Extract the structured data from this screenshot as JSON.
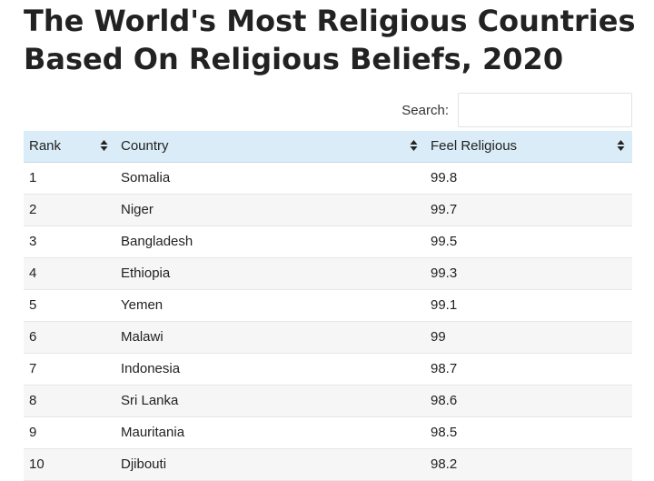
{
  "page": {
    "title": "The World's Most Religious Countries Based On Religious Beliefs, 2020"
  },
  "search": {
    "label": "Search:",
    "value": "",
    "placeholder": ""
  },
  "table": {
    "columns": [
      "Rank",
      "Country",
      "Feel Religious"
    ],
    "rows": [
      [
        "1",
        "Somalia",
        "99.8"
      ],
      [
        "2",
        "Niger",
        "99.7"
      ],
      [
        "3",
        "Bangladesh",
        "99.5"
      ],
      [
        "4",
        "Ethiopia",
        "99.3"
      ],
      [
        "5",
        "Yemen",
        "99.1"
      ],
      [
        "6",
        "Malawi",
        "99"
      ],
      [
        "7",
        "Indonesia",
        "98.7"
      ],
      [
        "8",
        "Sri Lanka",
        "98.6"
      ],
      [
        "9",
        "Mauritania",
        "98.5"
      ],
      [
        "10",
        "Djibouti",
        "98.2"
      ]
    ]
  },
  "icons": {
    "sort": "sort-both-icon"
  },
  "colors": {
    "header_bg": "#d9ecf7",
    "stripe_bg": "#f6f6f6"
  }
}
